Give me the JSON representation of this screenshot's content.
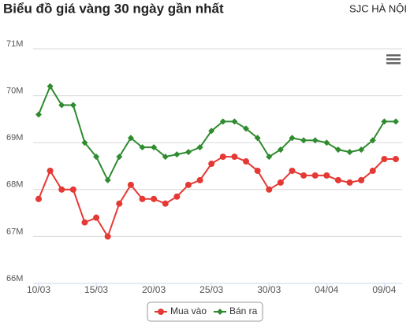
{
  "chart_data": {
    "type": "line",
    "title": "Biểu đồ giá vàng 30 ngày gần nhất",
    "subtitle": "SJC HÀ NỘI",
    "categories": [
      "10/03",
      null,
      null,
      null,
      null,
      "15/03",
      null,
      null,
      null,
      null,
      "20/03",
      null,
      null,
      null,
      null,
      "25/03",
      null,
      null,
      null,
      null,
      "30/03",
      null,
      null,
      null,
      null,
      "04/04",
      null,
      null,
      null,
      null,
      "09/04",
      null
    ],
    "series": [
      {
        "name": "Mua vào",
        "color": "#e53935",
        "marker": "circle",
        "values": [
          67.8,
          68.4,
          68.0,
          68.0,
          67.3,
          67.4,
          67.0,
          67.7,
          68.1,
          67.8,
          67.8,
          67.7,
          67.85,
          68.1,
          68.2,
          68.55,
          68.7,
          68.7,
          68.6,
          68.4,
          68.0,
          68.15,
          68.4,
          68.3,
          68.3,
          68.3,
          68.2,
          68.15,
          68.2,
          68.4,
          68.65,
          68.65
        ]
      },
      {
        "name": "Bán ra",
        "color": "#2e8b2e",
        "marker": "diamond",
        "values": [
          69.6,
          70.2,
          69.8,
          69.8,
          69.0,
          68.7,
          68.2,
          68.7,
          69.1,
          68.9,
          68.9,
          68.7,
          68.75,
          68.8,
          68.9,
          69.25,
          69.45,
          69.45,
          69.3,
          69.1,
          68.7,
          68.85,
          69.1,
          69.05,
          69.05,
          69.0,
          68.85,
          68.8,
          68.85,
          69.05,
          69.45,
          69.45
        ]
      }
    ],
    "ylim": [
      66,
      71
    ],
    "yticks": [
      {
        "value": 66,
        "label": "66M"
      },
      {
        "value": 67,
        "label": "67M"
      },
      {
        "value": 68,
        "label": "68M"
      },
      {
        "value": 69,
        "label": "69M"
      },
      {
        "value": 70,
        "label": "70M"
      },
      {
        "value": 71,
        "label": "71M"
      }
    ],
    "grid": true
  }
}
